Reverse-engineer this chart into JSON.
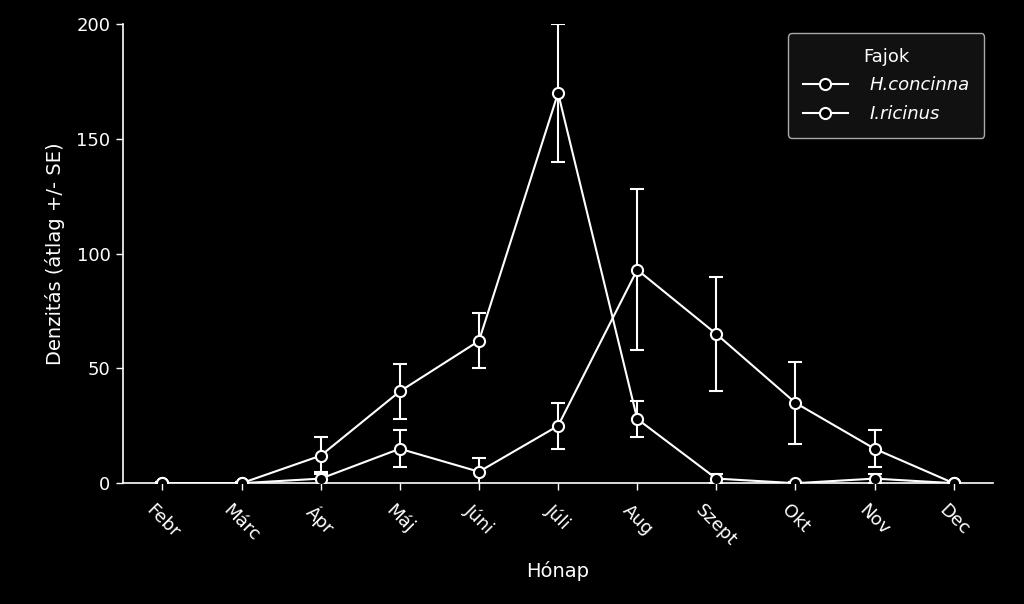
{
  "months": [
    "Febr",
    "Márc",
    "Ápr",
    "Máj",
    "Júni",
    "Júli",
    "Aug",
    "Szept",
    "Okt",
    "Nov",
    "Dec"
  ],
  "h_concinna_mean": [
    0,
    0,
    12,
    40,
    62,
    170,
    28,
    2,
    0,
    2,
    0
  ],
  "h_concinna_se": [
    0.5,
    0.5,
    8,
    12,
    12,
    30,
    8,
    2,
    0.5,
    2,
    0.5
  ],
  "i_ricinus_mean": [
    0,
    0,
    2,
    15,
    5,
    25,
    93,
    65,
    35,
    15,
    0
  ],
  "i_ricinus_se": [
    0.5,
    0.5,
    3,
    8,
    6,
    10,
    35,
    25,
    18,
    8,
    0.5
  ],
  "ylim": [
    0,
    200
  ],
  "yticks": [
    0,
    50,
    100,
    150,
    200
  ],
  "xlabel": "Hónap",
  "ylabel": "Denzitás (átlag +/- SE)",
  "legend_title": "Fajok",
  "legend_h": "H.concinna",
  "legend_i": "I.ricinus",
  "bg_color": "#000000",
  "line_color": "#ffffff",
  "label_fontsize": 14,
  "tick_fontsize": 13,
  "legend_fontsize": 13,
  "legend_title_fontsize": 13
}
